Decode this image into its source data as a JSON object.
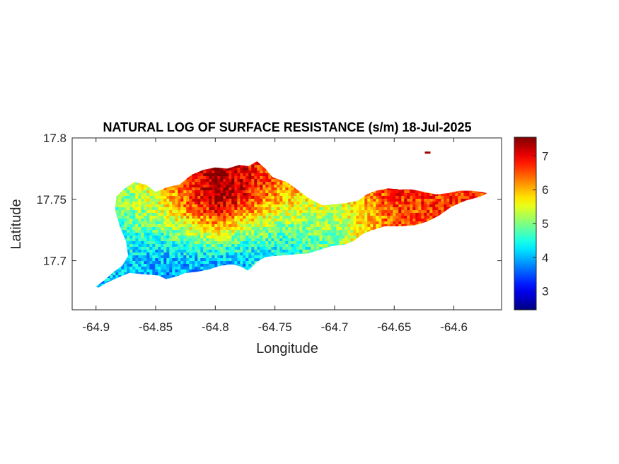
{
  "chart_data": {
    "type": "heatmap",
    "title": "NATURAL LOG OF SURFACE RESISTANCE (s/m) 18-Jul-2025",
    "xlabel": "Longitude",
    "ylabel": "Latitude",
    "xlim": [
      -64.92,
      -64.56
    ],
    "ylim": [
      17.66,
      17.8
    ],
    "xticks": [
      -64.9,
      -64.85,
      -64.8,
      -64.75,
      -64.7,
      -64.65,
      -64.6
    ],
    "xtick_labels": [
      "-64.9",
      "-64.85",
      "-64.8",
      "-64.75",
      "-64.7",
      "-64.65",
      "-64.6"
    ],
    "yticks": [
      17.7,
      17.75,
      17.8
    ],
    "ytick_labels": [
      "17.7",
      "17.75",
      "17.8"
    ],
    "colormap": "jet",
    "clim": [
      2.45,
      7.55
    ],
    "colorbar_ticks": [
      3,
      4,
      5,
      6,
      7
    ],
    "colorbar_tick_labels": [
      "3",
      "4",
      "5",
      "6",
      "7"
    ],
    "grid": false,
    "region_outline": [
      [
        -64.9,
        17.679
      ],
      [
        -64.893,
        17.684
      ],
      [
        -64.885,
        17.691
      ],
      [
        -64.878,
        17.696
      ],
      [
        -64.873,
        17.704
      ],
      [
        -64.875,
        17.716
      ],
      [
        -64.88,
        17.728
      ],
      [
        -64.884,
        17.741
      ],
      [
        -64.883,
        17.752
      ],
      [
        -64.877,
        17.758
      ],
      [
        -64.868,
        17.764
      ],
      [
        -64.858,
        17.762
      ],
      [
        -64.85,
        17.756
      ],
      [
        -64.84,
        17.76
      ],
      [
        -64.83,
        17.762
      ],
      [
        -64.82,
        17.77
      ],
      [
        -64.81,
        17.774
      ],
      [
        -64.8,
        17.776
      ],
      [
        -64.79,
        17.775
      ],
      [
        -64.78,
        17.778
      ],
      [
        -64.772,
        17.777
      ],
      [
        -64.765,
        17.781
      ],
      [
        -64.758,
        17.775
      ],
      [
        -64.752,
        17.768
      ],
      [
        -64.74,
        17.764
      ],
      [
        -64.73,
        17.757
      ],
      [
        -64.722,
        17.751
      ],
      [
        -64.71,
        17.745
      ],
      [
        -64.7,
        17.746
      ],
      [
        -64.69,
        17.747
      ],
      [
        -64.68,
        17.749
      ],
      [
        -64.673,
        17.754
      ],
      [
        -64.665,
        17.757
      ],
      [
        -64.655,
        17.759
      ],
      [
        -64.645,
        17.758
      ],
      [
        -64.635,
        17.758
      ],
      [
        -64.625,
        17.756
      ],
      [
        -64.615,
        17.754
      ],
      [
        -64.605,
        17.755
      ],
      [
        -64.595,
        17.757
      ],
      [
        -64.585,
        17.757
      ],
      [
        -64.577,
        17.756
      ],
      [
        -64.572,
        17.755
      ],
      [
        -64.578,
        17.752
      ],
      [
        -64.59,
        17.749
      ],
      [
        -64.602,
        17.744
      ],
      [
        -64.612,
        17.737
      ],
      [
        -64.622,
        17.732
      ],
      [
        -64.632,
        17.729
      ],
      [
        -64.645,
        17.728
      ],
      [
        -64.658,
        17.728
      ],
      [
        -64.668,
        17.725
      ],
      [
        -64.676,
        17.722
      ],
      [
        -64.684,
        17.716
      ],
      [
        -64.692,
        17.713
      ],
      [
        -64.702,
        17.712
      ],
      [
        -64.712,
        17.709
      ],
      [
        -64.722,
        17.706
      ],
      [
        -64.735,
        17.705
      ],
      [
        -64.748,
        17.704
      ],
      [
        -64.758,
        17.703
      ],
      [
        -64.765,
        17.699
      ],
      [
        -64.77,
        17.694
      ],
      [
        -64.773,
        17.692
      ],
      [
        -64.778,
        17.695
      ],
      [
        -64.785,
        17.697
      ],
      [
        -64.795,
        17.696
      ],
      [
        -64.805,
        17.693
      ],
      [
        -64.815,
        17.691
      ],
      [
        -64.825,
        17.69
      ],
      [
        -64.833,
        17.687
      ],
      [
        -64.841,
        17.685
      ],
      [
        -64.848,
        17.688
      ],
      [
        -64.86,
        17.689
      ],
      [
        -64.872,
        17.69
      ],
      [
        -64.882,
        17.686
      ],
      [
        -64.891,
        17.682
      ],
      [
        -64.898,
        17.678
      ]
    ],
    "islet": [
      -64.622,
      17.788
    ],
    "field_trend": [
      {
        "lon": -64.9,
        "lat_low": 17.68,
        "value_low": 4.1,
        "value_high": 4.6
      },
      {
        "lon": -64.85,
        "lat_low": 17.69,
        "value_low": 3.9,
        "value_high": 5.6
      },
      {
        "lon": -64.8,
        "lat_low": 17.69,
        "value_low": 3.9,
        "value_high": 7.5
      },
      {
        "lon": -64.75,
        "lat_low": 17.7,
        "value_low": 4.3,
        "value_high": 6.4
      },
      {
        "lon": -64.7,
        "lat_low": 17.71,
        "value_low": 5.0,
        "value_high": 5.6
      },
      {
        "lon": -64.65,
        "lat_low": 17.73,
        "value_low": 6.5,
        "value_high": 7.5
      },
      {
        "lon": -64.6,
        "lat_low": 17.74,
        "value_low": 6.6,
        "value_high": 7.2
      }
    ]
  }
}
